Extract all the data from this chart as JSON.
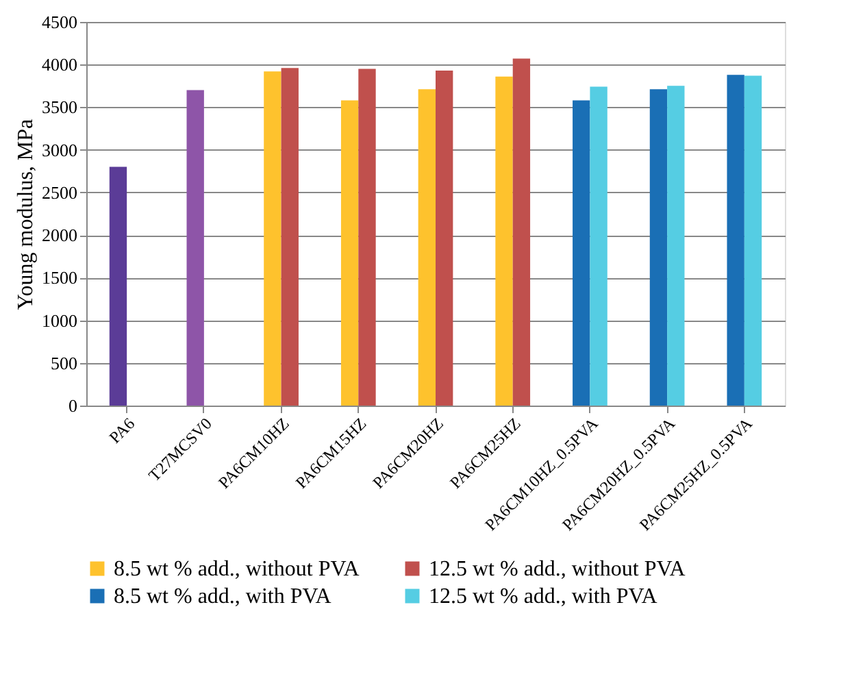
{
  "chart_data": {
    "type": "bar",
    "ylabel": "Young modulus, MPa",
    "categories": [
      "PA6",
      "T27MCSV0",
      "PA6CM10HZ",
      "PA6CM15HZ",
      "PA6CM20HZ",
      "PA6CM25HZ",
      "PA6CM10HZ_0.5PVA",
      "PA6CM20HZ_0.5PVA",
      "PA6CM25HZ_0.5PVA"
    ],
    "series": [
      {
        "colors": [
          "#5b3c97",
          "#8e55a8",
          null,
          null,
          null,
          null,
          null,
          null,
          null
        ],
        "values": [
          2800,
          3700,
          null,
          null,
          null,
          null,
          null,
          null,
          null
        ]
      },
      {
        "name": "8.5 wt % add., without PVA",
        "color": "#fec22d",
        "values": [
          null,
          null,
          3920,
          3580,
          3710,
          3860,
          null,
          null,
          null
        ]
      },
      {
        "name": "12.5 wt % add., without PVA",
        "color": "#c0504d",
        "values": [
          null,
          null,
          3960,
          3950,
          3930,
          4070,
          null,
          null,
          null
        ]
      },
      {
        "name": "8.5 wt % add., with PVA",
        "color": "#1a6fb5",
        "values": [
          null,
          null,
          null,
          null,
          null,
          null,
          3580,
          3710,
          3880
        ]
      },
      {
        "name": "12.5 wt % add., with PVA",
        "color": "#55cde3",
        "values": [
          null,
          null,
          null,
          null,
          null,
          null,
          3740,
          3750,
          3870
        ]
      }
    ],
    "ylim": [
      0,
      4500
    ],
    "yticks": [
      0,
      500,
      1000,
      1500,
      2000,
      2500,
      3000,
      3500,
      4000,
      4500
    ],
    "grid": "y",
    "legend": "bottom"
  }
}
